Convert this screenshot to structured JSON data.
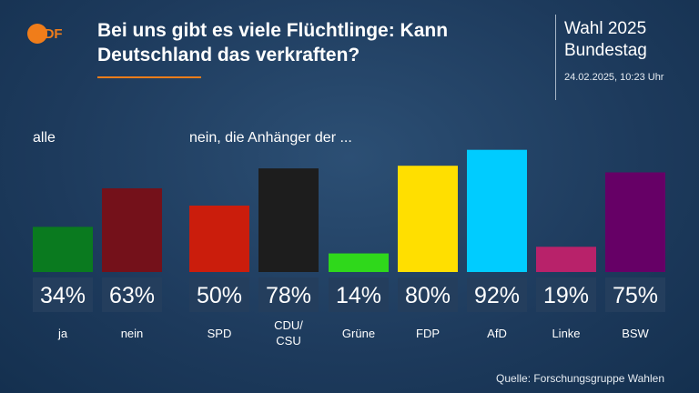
{
  "header": {
    "logo_text": "ZDF",
    "title": "Bei uns gibt es viele Flüchtlinge: Kann Deutschland das verkraften?",
    "election_line1": "Wahl 2025",
    "election_line2": "Bundestag",
    "timestamp": "24.02.2025, 10:23 Uhr"
  },
  "groups": {
    "all_label": "alle",
    "party_label": "nein, die Anhänger der ..."
  },
  "chart_data": {
    "type": "bar",
    "unit": "%",
    "ylim": [
      0,
      100
    ],
    "categories": [
      "ja",
      "nein",
      "SPD",
      "CDU/ CSU",
      "Grüne",
      "FDP",
      "AfD",
      "Linke",
      "BSW"
    ],
    "values": [
      34,
      63,
      50,
      78,
      14,
      80,
      92,
      19,
      75
    ],
    "value_labels": [
      "34%",
      "63%",
      "50%",
      "78%",
      "14%",
      "80%",
      "92%",
      "19%",
      "75%"
    ],
    "colors": [
      "#0a7a1f",
      "#74111a",
      "#cb1d0c",
      "#1d1d1d",
      "#2fd81b",
      "#ffdf00",
      "#00ccff",
      "#b8226a",
      "#660066"
    ]
  },
  "source": "Quelle: Forschungsgruppe Wahlen"
}
